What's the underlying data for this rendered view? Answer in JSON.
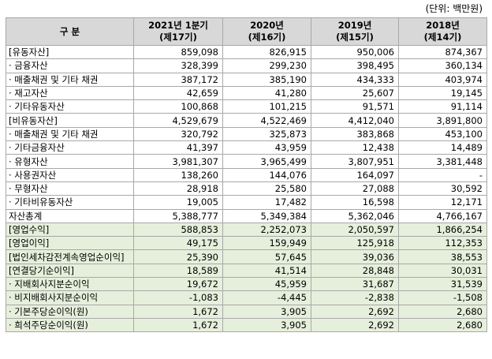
{
  "unit_note": "(단위: 백만원)",
  "header": {
    "label": "구 분",
    "periods": [
      {
        "year": "2021년 1분기",
        "term": "(제17기)"
      },
      {
        "year": "2020년",
        "term": "(제16기)"
      },
      {
        "year": "2019년",
        "term": "(제15기)"
      },
      {
        "year": "2018년",
        "term": "(제14기)"
      }
    ]
  },
  "rows": [
    {
      "label": "[유동자산]",
      "values": [
        "859,098",
        "826,915",
        "950,006",
        "874,367"
      ]
    },
    {
      "label": "· 금융자산",
      "values": [
        "328,399",
        "299,230",
        "398,495",
        "360,134"
      ]
    },
    {
      "label": "· 매출채권 및 기타 채권",
      "values": [
        "387,172",
        "385,190",
        "434,333",
        "403,974"
      ]
    },
    {
      "label": "· 재고자산",
      "values": [
        "42,659",
        "41,280",
        "25,607",
        "19,145"
      ]
    },
    {
      "label": "· 기타유동자산",
      "values": [
        "100,868",
        "101,215",
        "91,571",
        "91,114"
      ]
    },
    {
      "label": "[비유동자산]",
      "values": [
        "4,529,679",
        "4,522,469",
        "4,412,040",
        "3,891,800"
      ]
    },
    {
      "label": "· 매출채권 및 기타 채권",
      "values": [
        "320,792",
        "325,873",
        "383,868",
        "453,100"
      ]
    },
    {
      "label": "· 기타금융자산",
      "values": [
        "41,397",
        "43,959",
        "12,438",
        "14,489"
      ]
    },
    {
      "label": "· 유형자산",
      "values": [
        "3,981,307",
        "3,965,499",
        "3,807,951",
        "3,381,448"
      ]
    },
    {
      "label": "· 사용권자산",
      "values": [
        "138,260",
        "144,076",
        "164,097",
        "-"
      ]
    },
    {
      "label": "· 무형자산",
      "values": [
        "28,918",
        "25,580",
        "27,088",
        "30,592"
      ]
    },
    {
      "label": "· 기타비유동자산",
      "values": [
        "19,005",
        "17,482",
        "16,598",
        "12,171"
      ]
    },
    {
      "label": "자산총계",
      "values": [
        "5,388,777",
        "5,349,384",
        "5,362,046",
        "4,766,167"
      ]
    }
  ],
  "income_rows": [
    {
      "label": "[영업수익]",
      "values": [
        "588,853",
        "2,252,073",
        "2,050,597",
        "1,866,254"
      ]
    },
    {
      "label": "[영업이익]",
      "values": [
        "49,175",
        "159,949",
        "125,918",
        "112,353"
      ]
    },
    {
      "label": "[법인세차감전계속영업순이익]",
      "values": [
        "25,390",
        "57,645",
        "39,036",
        "38,553"
      ]
    },
    {
      "label": "[연결당기순이익]",
      "values": [
        "18,589",
        "41,514",
        "28,848",
        "30,031"
      ]
    },
    {
      "label": "· 지배회사지분순이익",
      "values": [
        "19,672",
        "45,959",
        "31,687",
        "31,539"
      ]
    },
    {
      "label": "· 비지배회사지분순이익",
      "values": [
        "-1,083",
        "-4,445",
        "-2,838",
        "-1,508"
      ]
    },
    {
      "label": "· 기본주당순이익(원)",
      "values": [
        "1,672",
        "3,905",
        "2,692",
        "2,680"
      ]
    },
    {
      "label": "· 희석주당순이익(원)",
      "values": [
        "1,672",
        "3,905",
        "2,692",
        "2,680"
      ]
    }
  ]
}
